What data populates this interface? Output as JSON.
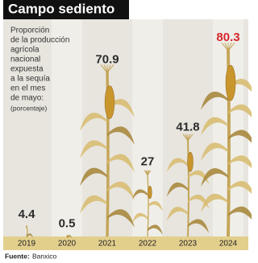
{
  "chart_data": {
    "type": "plant",
    "title": "Campo sediento",
    "subtitle": [
      "Proporción",
      "de la producción",
      "agrícola",
      "nacional",
      "expuesta",
      "a la sequía",
      "en el mes",
      "de mayo:"
    ],
    "unit": "(porcentaje)",
    "categories": [
      "2019",
      "2020",
      "2021",
      "2022",
      "2023",
      "2024"
    ],
    "values": [
      4.4,
      0.5,
      70.9,
      27,
      41.8,
      80.3
    ],
    "colors": [
      "#2b2b2b",
      "#2b2b2b",
      "#2b2b2b",
      "#2b2b2b",
      "#2b2b2b",
      "#d7262b"
    ],
    "source_label": "Fuente:",
    "source": "Banxico"
  }
}
